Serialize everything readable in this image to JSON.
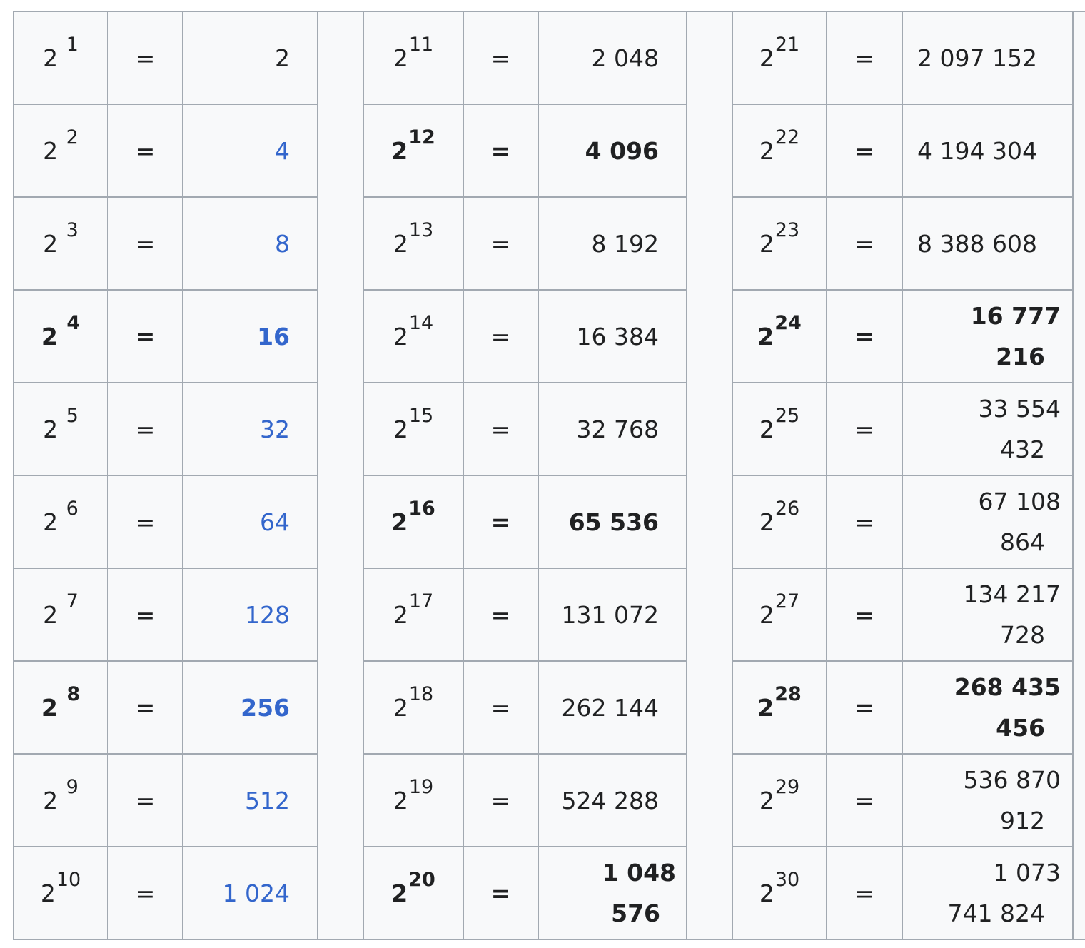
{
  "table": {
    "columns": [
      {
        "rows": [
          {
            "base": "2",
            "exp": "1",
            "eq": "=",
            "value": "2",
            "bold": false,
            "link": false
          },
          {
            "base": "2",
            "exp": "2",
            "eq": "=",
            "value": "4",
            "bold": false,
            "link": true
          },
          {
            "base": "2",
            "exp": "3",
            "eq": "=",
            "value": "8",
            "bold": false,
            "link": true
          },
          {
            "base": "2",
            "exp": "4",
            "eq": "=",
            "value": "16",
            "bold": true,
            "link": true
          },
          {
            "base": "2",
            "exp": "5",
            "eq": "=",
            "value": "32",
            "bold": false,
            "link": true
          },
          {
            "base": "2",
            "exp": "6",
            "eq": "=",
            "value": "64",
            "bold": false,
            "link": true
          },
          {
            "base": "2",
            "exp": "7",
            "eq": "=",
            "value": "128",
            "bold": false,
            "link": true
          },
          {
            "base": "2",
            "exp": "8",
            "eq": "=",
            "value": "256",
            "bold": true,
            "link": true
          },
          {
            "base": "2",
            "exp": "9",
            "eq": "=",
            "value": "512",
            "bold": false,
            "link": true
          },
          {
            "base": "2",
            "exp": "10",
            "eq": "=",
            "value": "1 024",
            "bold": false,
            "link": true
          }
        ]
      },
      {
        "rows": [
          {
            "base": "2",
            "exp": "11",
            "eq": "=",
            "value": "2 048",
            "bold": false
          },
          {
            "base": "2",
            "exp": "12",
            "eq": "=",
            "value": "4 096",
            "bold": true
          },
          {
            "base": "2",
            "exp": "13",
            "eq": "=",
            "value": "8 192",
            "bold": false
          },
          {
            "base": "2",
            "exp": "14",
            "eq": "=",
            "value": "16 384",
            "bold": false
          },
          {
            "base": "2",
            "exp": "15",
            "eq": "=",
            "value": "32 768",
            "bold": false
          },
          {
            "base": "2",
            "exp": "16",
            "eq": "=",
            "value": "65 536",
            "bold": true
          },
          {
            "base": "2",
            "exp": "17",
            "eq": "=",
            "value": "131 072",
            "bold": false
          },
          {
            "base": "2",
            "exp": "18",
            "eq": "=",
            "value": "262 144",
            "bold": false
          },
          {
            "base": "2",
            "exp": "19",
            "eq": "=",
            "value": "524 288",
            "bold": false
          },
          {
            "base": "2",
            "exp": "20",
            "eq": "=",
            "value_line1": "1 048",
            "value_line2": "576",
            "bold": true
          }
        ]
      },
      {
        "rows": [
          {
            "base": "2",
            "exp": "21",
            "eq": "=",
            "value": "2 097 152",
            "bold": false
          },
          {
            "base": "2",
            "exp": "22",
            "eq": "=",
            "value": "4 194 304",
            "bold": false
          },
          {
            "base": "2",
            "exp": "23",
            "eq": "=",
            "value": "8 388 608",
            "bold": false
          },
          {
            "base": "2",
            "exp": "24",
            "eq": "=",
            "value_line1": "16 777",
            "value_line2": "216",
            "bold": true
          },
          {
            "base": "2",
            "exp": "25",
            "eq": "=",
            "value_line1": "33 554",
            "value_line2": "432",
            "bold": false
          },
          {
            "base": "2",
            "exp": "26",
            "eq": "=",
            "value_line1": "67 108",
            "value_line2": "864",
            "bold": false
          },
          {
            "base": "2",
            "exp": "27",
            "eq": "=",
            "value_line1": "134 217",
            "value_line2": "728",
            "bold": false
          },
          {
            "base": "2",
            "exp": "28",
            "eq": "=",
            "value_line1": "268 435",
            "value_line2": "456",
            "bold": true
          },
          {
            "base": "2",
            "exp": "29",
            "eq": "=",
            "value_line1": "536 870",
            "value_line2": "912",
            "bold": false
          },
          {
            "base": "2",
            "exp": "30",
            "eq": "=",
            "value_line1": "1 073",
            "value_line2": "741 824",
            "bold": false
          }
        ]
      }
    ]
  },
  "colors": {
    "link": "#3366cc",
    "text": "#202122",
    "cell_background": "#f8f9fa",
    "border": "#a2a9b1"
  }
}
